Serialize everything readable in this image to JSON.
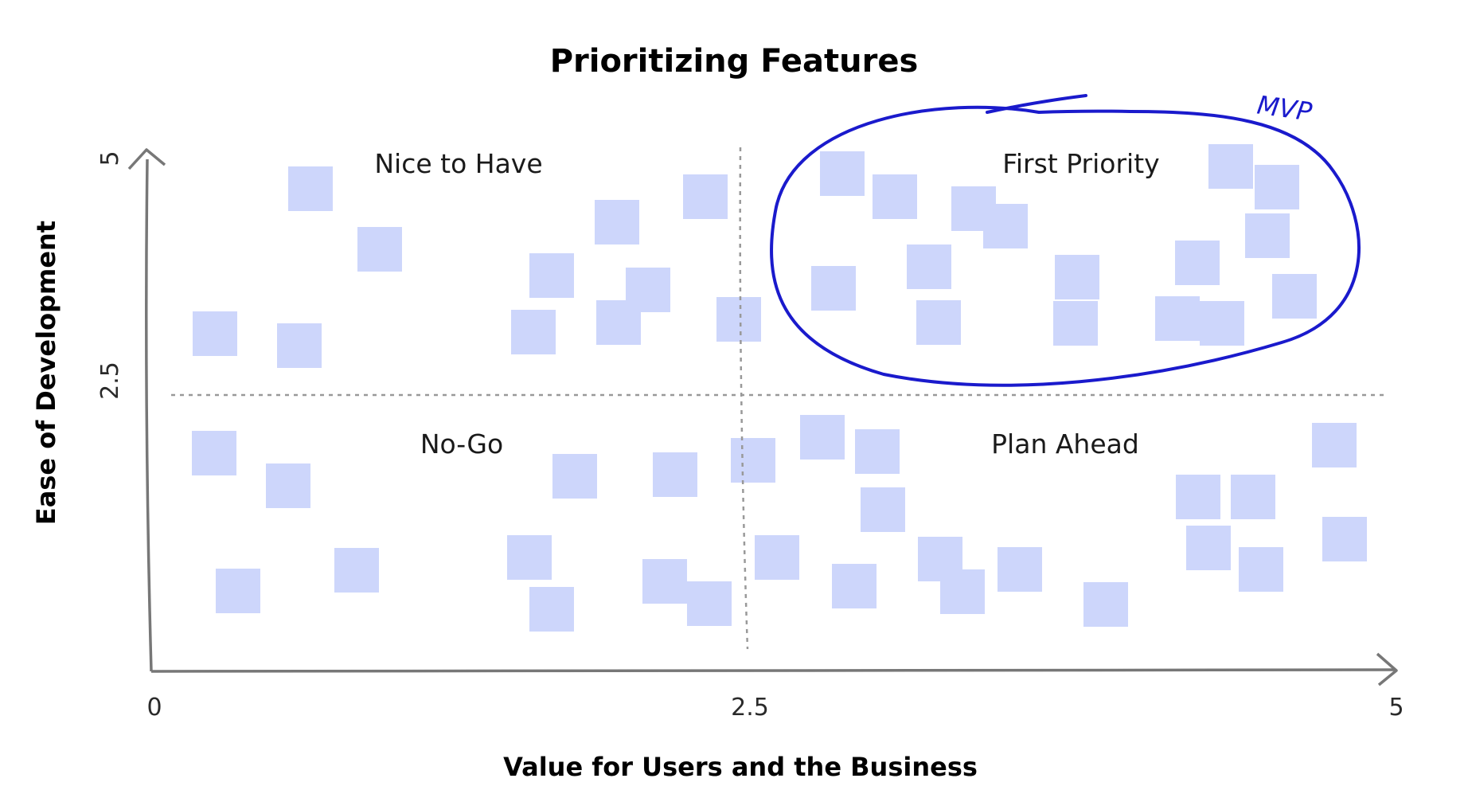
{
  "title": "Prioritizing Features",
  "x_axis": {
    "label": "Value for Users and the Business",
    "ticks": [
      "0",
      "2.5",
      "5"
    ]
  },
  "y_axis": {
    "label": "Ease of Development",
    "ticks": [
      "2.5",
      "5"
    ]
  },
  "quadrants": {
    "top_left": "Nice to Have",
    "top_right": "First Priority",
    "bottom_left": "No-Go",
    "bottom_right": "Plan Ahead"
  },
  "highlight": {
    "label": "MVP",
    "color": "#1a1acc"
  },
  "colors": {
    "axis": "#777777",
    "divider": "#999999",
    "sticky_note": "#cdd6fb"
  }
}
